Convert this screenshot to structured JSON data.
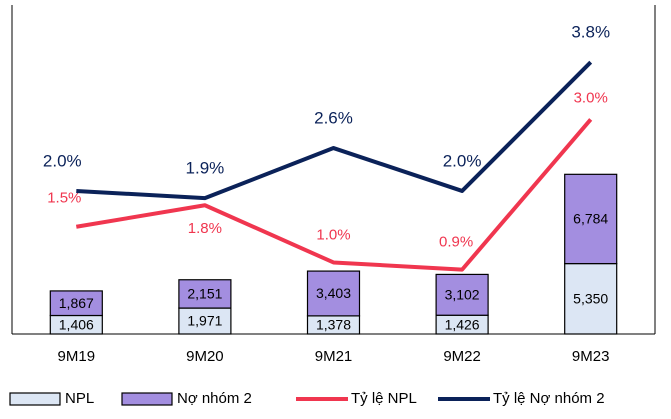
{
  "chart_data": {
    "type": "bar_line",
    "categories": [
      "9M19",
      "9M20",
      "9M21",
      "9M22",
      "9M23"
    ],
    "series": [
      {
        "name": "NPL",
        "type": "bar",
        "color": "#dce6f4",
        "values": [
          1406,
          1971,
          1378,
          1426,
          5350
        ],
        "value_labels": [
          "1,406",
          "1,971",
          "1,378",
          "1,426",
          "5,350"
        ]
      },
      {
        "name": "Nợ nhóm 2",
        "type": "bar",
        "color": "#a38ee0",
        "values": [
          1867,
          2151,
          3403,
          3102,
          6784
        ],
        "value_labels": [
          "1,867",
          "2,151",
          "3,403",
          "3,102",
          "6,784"
        ]
      },
      {
        "name": "Tỷ lệ NPL",
        "type": "line",
        "axis": "y2",
        "color": "#f0364f",
        "values": [
          1.5,
          1.8,
          1.0,
          0.9,
          3.0
        ],
        "value_labels": [
          "1.5%",
          "1.8%",
          "1.0%",
          "0.9%",
          "3.0%"
        ]
      },
      {
        "name": "Tỷ lệ Nợ nhóm 2",
        "type": "line",
        "axis": "y2",
        "color": "#0b2259",
        "values": [
          2.0,
          1.9,
          2.6,
          2.0,
          3.8
        ],
        "value_labels": [
          "2.0%",
          "1.9%",
          "2.6%",
          "2.0%",
          "3.8%"
        ]
      }
    ],
    "ylim": [
      0,
      25000
    ],
    "y2lim": [
      0,
      4.6
    ]
  }
}
